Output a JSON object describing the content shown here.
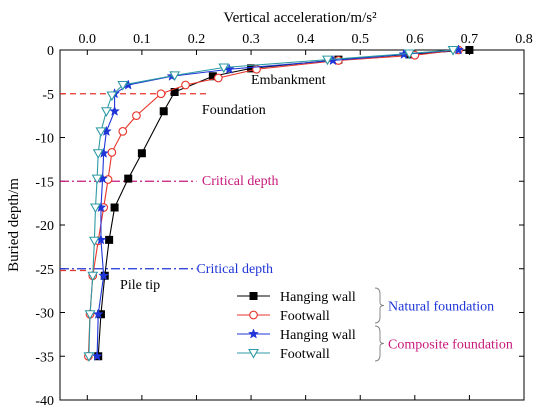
{
  "chart_data": {
    "type": "line",
    "xlabel": "Vertical acceleration/m/s²",
    "ylabel": "Buried depth/m",
    "xlim": [
      -0.05,
      0.8
    ],
    "ylim": [
      -40,
      0
    ],
    "x_ticks": [
      0,
      0.1,
      0.2,
      0.3,
      0.4,
      0.5,
      0.6,
      0.7,
      0.8
    ],
    "x_tick_labels": [
      "0.0",
      "0.1",
      "0.2",
      "0.3",
      "0.4",
      "0.5",
      "0.6",
      "0.7",
      "0.8"
    ],
    "y_ticks": [
      0,
      -5,
      -10,
      -15,
      -20,
      -25,
      -30,
      -35,
      -40
    ],
    "y_tick_labels": [
      "0",
      "-5",
      "-10",
      "-15",
      "-20",
      "-25",
      "-30",
      "-35",
      "-40"
    ],
    "x_axis_position": "top",
    "grid": false,
    "legend_position": "bottom-right",
    "series": [
      {
        "name": "Hanging wall",
        "group": "Natural foundation",
        "color": "#000000",
        "marker": "square-filled",
        "points": [
          [
            0.7,
            0
          ],
          [
            0.59,
            -0.5
          ],
          [
            0.46,
            -1.1
          ],
          [
            0.3,
            -2.1
          ],
          [
            0.23,
            -3.0
          ],
          [
            0.16,
            -4.8
          ],
          [
            0.14,
            -7.0
          ],
          [
            0.1,
            -11.8
          ],
          [
            0.075,
            -14.7
          ],
          [
            0.05,
            -18.0
          ],
          [
            0.04,
            -21.7
          ],
          [
            0.032,
            -25.8
          ],
          [
            0.025,
            -30.2
          ],
          [
            0.02,
            -35.0
          ]
        ]
      },
      {
        "name": "Footwall",
        "group": "Natural foundation",
        "color": "#e8352c",
        "marker": "circle-open",
        "points": [
          [
            0.68,
            0
          ],
          [
            0.6,
            -0.6
          ],
          [
            0.46,
            -1.2
          ],
          [
            0.31,
            -2.2
          ],
          [
            0.24,
            -3.2
          ],
          [
            0.18,
            -4.0
          ],
          [
            0.135,
            -5.0
          ],
          [
            0.09,
            -7.5
          ],
          [
            0.065,
            -9.3
          ],
          [
            0.045,
            -11.7
          ],
          [
            0.038,
            -14.8
          ],
          [
            0.03,
            -18.0
          ],
          [
            0.02,
            -21.8
          ],
          [
            0.01,
            -25.8
          ],
          [
            0.005,
            -30.2
          ],
          [
            0.002,
            -35.0
          ]
        ]
      },
      {
        "name": "Hanging wall",
        "group": "Composite foundation",
        "color": "#1f35d8",
        "marker": "star-filled",
        "points": [
          [
            0.68,
            0
          ],
          [
            0.58,
            -0.5
          ],
          [
            0.45,
            -1.2
          ],
          [
            0.26,
            -2.2
          ],
          [
            0.155,
            -3.0
          ],
          [
            0.075,
            -4.0
          ],
          [
            0.05,
            -5.0
          ],
          [
            0.05,
            -7.0
          ],
          [
            0.035,
            -9.3
          ],
          [
            0.03,
            -11.8
          ],
          [
            0.028,
            -14.7
          ],
          [
            0.025,
            -18.0
          ],
          [
            0.025,
            -21.7
          ],
          [
            0.03,
            -25.8
          ],
          [
            0.02,
            -30.2
          ],
          [
            0.018,
            -35.0
          ]
        ]
      },
      {
        "name": "Footwall",
        "group": "Composite foundation",
        "color": "#2e9aa4",
        "marker": "triangle-down-open",
        "points": [
          [
            0.67,
            0
          ],
          [
            0.59,
            -0.4
          ],
          [
            0.44,
            -1.1
          ],
          [
            0.25,
            -2.0
          ],
          [
            0.16,
            -2.9
          ],
          [
            0.065,
            -4.0
          ],
          [
            0.045,
            -5.2
          ],
          [
            0.035,
            -7.0
          ],
          [
            0.025,
            -9.3
          ],
          [
            0.02,
            -11.8
          ],
          [
            0.018,
            -14.7
          ],
          [
            0.015,
            -18.0
          ],
          [
            0.013,
            -21.8
          ],
          [
            0.01,
            -25.8
          ],
          [
            0.005,
            -30.2
          ],
          [
            0.003,
            -35.0
          ]
        ]
      }
    ],
    "reference_lines": [
      {
        "kind": "foundation",
        "y": -5,
        "x_end": 0.22,
        "color": "#e8352c",
        "style": "dash"
      },
      {
        "kind": "critical-depth",
        "y": -15,
        "x_end": 0.2,
        "color": "#c8197a",
        "style": "dashdot"
      },
      {
        "kind": "critical-depth",
        "y": -25,
        "x_end": 0.2,
        "color": "#1f35d8",
        "style": "dashdot"
      },
      {
        "kind": "pile-tip",
        "y": -25.2,
        "x_end": 0.0,
        "color": "#e8352c",
        "style": "dash"
      }
    ],
    "annotations": [
      {
        "text": "Embankment",
        "x": 0.3,
        "y": -3.9,
        "color": "#000000",
        "anchor": "start"
      },
      {
        "text": "Foundation",
        "x": 0.21,
        "y": -7.3,
        "color": "#000000",
        "anchor": "start"
      },
      {
        "text": "Critical depth",
        "x": 0.21,
        "y": -15.4,
        "color": "#c8197a",
        "anchor": "start"
      },
      {
        "text": "Critical depth",
        "x": 0.2,
        "y": -25.5,
        "color": "#1f35d8",
        "anchor": "start"
      },
      {
        "text": "Pile tip",
        "x": 0.06,
        "y": -27.3,
        "color": "#000000",
        "anchor": "start"
      }
    ],
    "legend_groups": [
      {
        "label": "Natural foundation",
        "color": "#1f35d8"
      },
      {
        "label": "Composite foundation",
        "color": "#c8197a"
      }
    ]
  }
}
